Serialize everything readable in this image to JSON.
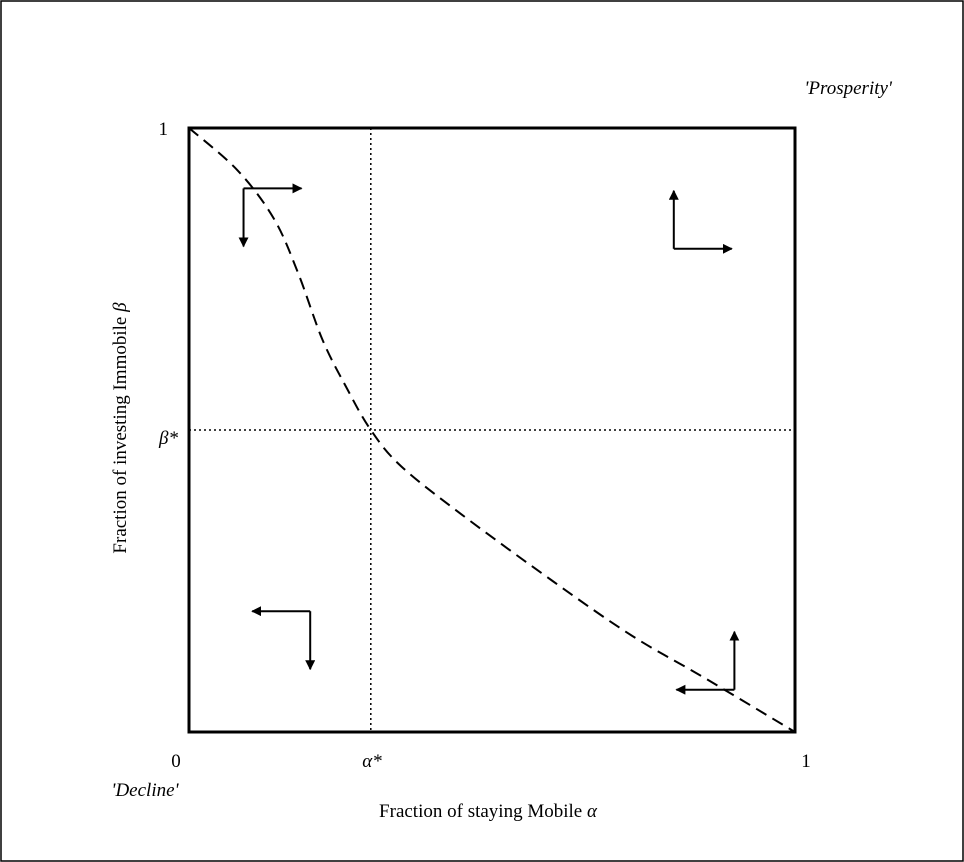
{
  "labels": {
    "prosperity": "'Prosperity'",
    "decline": "'Decline'",
    "y_top": "1",
    "y_star": "β*",
    "origin": "0",
    "x_star": "α*",
    "x_right": "1",
    "x_axis_text": "Fraction of staying Mobile ",
    "x_axis_symbol": "α",
    "y_axis_text": "Fraction of investing Immobile ",
    "y_axis_symbol": "β"
  },
  "chart_data": {
    "type": "line",
    "xlabel": "Fraction of staying Mobile α",
    "ylabel": "Fraction of investing Immobile β",
    "xlim": [
      0,
      1
    ],
    "ylim": [
      0,
      1
    ],
    "equilibrium": {
      "alpha_star": 0.3,
      "beta_star": 0.5
    },
    "series": [
      {
        "style": "dashed",
        "x": [
          0,
          0.08,
          0.14,
          0.18,
          0.22,
          0.26,
          0.3,
          0.35,
          0.45,
          0.6,
          0.73,
          0.85,
          1.0
        ],
        "y": [
          1,
          0.93,
          0.85,
          0.76,
          0.65,
          0.57,
          0.5,
          0.44,
          0.36,
          0.25,
          0.16,
          0.09,
          0
        ]
      }
    ],
    "direction_arrows": [
      {
        "x": 0.09,
        "y": 0.9,
        "horizontal": "right",
        "vertical": "down"
      },
      {
        "x": 0.8,
        "y": 0.8,
        "horizontal": "right",
        "vertical": "up"
      },
      {
        "x": 0.2,
        "y": 0.2,
        "horizontal": "left",
        "vertical": "down"
      },
      {
        "x": 0.9,
        "y": 0.07,
        "horizontal": "left",
        "vertical": "up"
      }
    ],
    "colors": {
      "line": "#000000",
      "background": "#ffffff"
    }
  }
}
